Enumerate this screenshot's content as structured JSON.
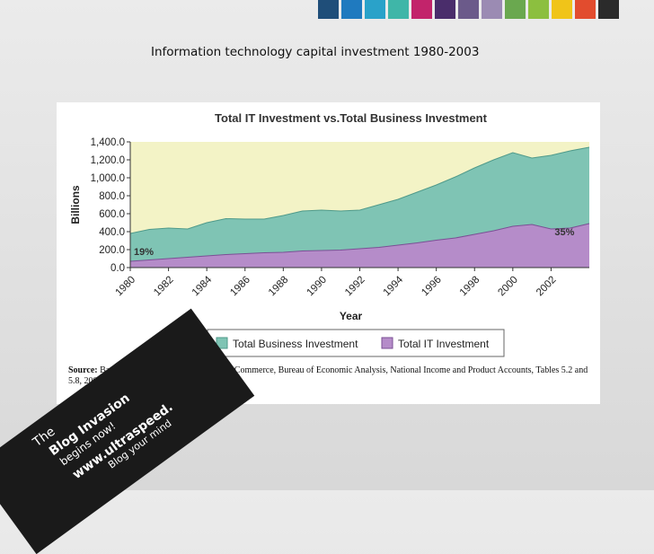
{
  "header": {
    "palette": [
      "#1f4e79",
      "#1f7abf",
      "#2aa2c9",
      "#3fb6a8",
      "#c2246b",
      "#4a2d6b",
      "#6b5a8a",
      "#9b8bb3",
      "#6aa84f",
      "#8cbf3f",
      "#f0c419",
      "#e24c2e",
      "#2b2b2b"
    ]
  },
  "slide": {
    "title": "Information technology capital investment 1980-2003"
  },
  "chart_data": {
    "type": "area",
    "title": "Total IT Investment vs.Total Business Investment",
    "xlabel": "Year",
    "ylabel": "Billions",
    "x": [
      1980,
      1981,
      1982,
      1983,
      1984,
      1985,
      1986,
      1987,
      1988,
      1989,
      1990,
      1991,
      1992,
      1993,
      1994,
      1995,
      1996,
      1997,
      1998,
      1999,
      2000,
      2001,
      2002,
      2003,
      2004
    ],
    "xticks": [
      "1980",
      "1982",
      "1984",
      "1986",
      "1988",
      "1990",
      "1992",
      "1994",
      "1996",
      "1998",
      "2000",
      "2002"
    ],
    "yticks": [
      "0.0",
      "200.0",
      "400.0",
      "600.0",
      "800.0",
      "1,000.0",
      "1,200.0",
      "1,400.0"
    ],
    "ylim": [
      0,
      1400
    ],
    "series": [
      {
        "name": "Total Business Investment",
        "color": "#7fc4b4",
        "values": [
          380,
          425,
          440,
          430,
          500,
          545,
          540,
          540,
          580,
          630,
          640,
          630,
          640,
          700,
          760,
          840,
          920,
          1010,
          1110,
          1200,
          1280,
          1220,
          1250,
          1300,
          1340
        ]
      },
      {
        "name": "Total IT Investment",
        "color": "#b58cc9",
        "values": [
          70,
          85,
          100,
          115,
          130,
          145,
          155,
          165,
          170,
          185,
          190,
          195,
          210,
          225,
          250,
          275,
          305,
          330,
          370,
          410,
          460,
          480,
          430,
          440,
          490
        ]
      }
    ],
    "background_color": "#f3f3c6",
    "annotations": [
      {
        "text": "19%",
        "x": 1980,
        "y": 120
      },
      {
        "text": "35%",
        "x": 2002,
        "y": 340
      }
    ],
    "source": {
      "label": "Source:",
      "text": "Based on data in U.S. Department of Commerce, Bureau of Economic Analysis, National Income and Product Accounts, Tables 5.2 and 5.8, 2003."
    }
  },
  "watermark": {
    "line1": "The",
    "line2": "Blog Invasion",
    "line3": "begins now!",
    "line4": "www.ultraspeed.",
    "line5": "Blog your mind"
  }
}
